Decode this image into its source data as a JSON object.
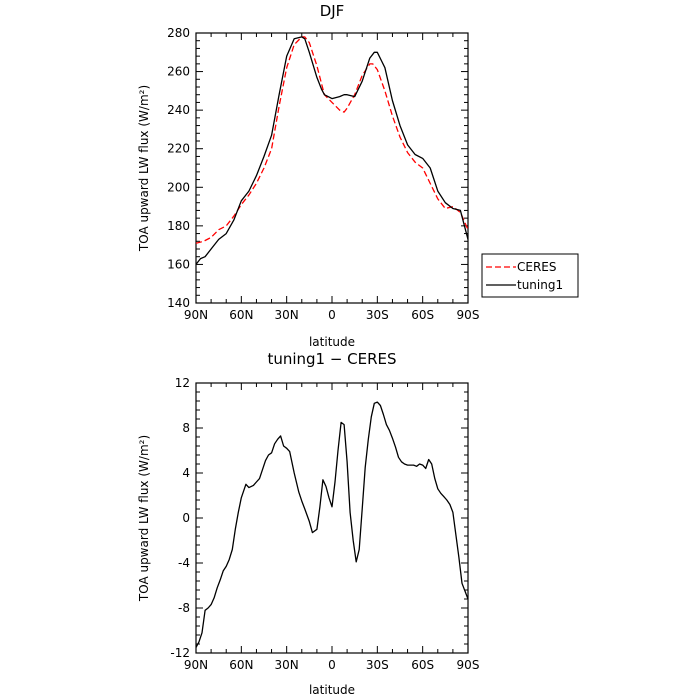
{
  "chart_data": [
    {
      "type": "line",
      "title": "DJF",
      "xlabel": "latitude",
      "ylabel": "TOA upward LW flux (W/m²)",
      "ylim": [
        140,
        280
      ],
      "yticks": [
        140,
        160,
        180,
        200,
        220,
        240,
        260,
        280
      ],
      "xlim": [
        90,
        -90
      ],
      "xticks": [
        90,
        60,
        30,
        0,
        -30,
        -60,
        -90
      ],
      "xticklabels": [
        "90N",
        "60N",
        "30N",
        "0",
        "30S",
        "60S",
        "90S"
      ],
      "legend": "outside-right",
      "series": [
        {
          "name": "CERES",
          "color": "#ff0000",
          "dash": "dashed",
          "x": [
            90,
            85,
            80,
            75,
            70,
            65,
            60,
            55,
            50,
            45,
            40,
            35,
            30,
            25,
            20,
            18,
            15,
            10,
            5,
            0,
            -5,
            -8,
            -10,
            -15,
            -20,
            -25,
            -27,
            -30,
            -35,
            -40,
            -45,
            -50,
            -55,
            -60,
            -65,
            -70,
            -75,
            -80,
            -85,
            -90
          ],
          "y": [
            171,
            172,
            174,
            178,
            180,
            185,
            191,
            196,
            202,
            210,
            220,
            242,
            262,
            274,
            278,
            278,
            275,
            263,
            248,
            244,
            240,
            239,
            241,
            248,
            258,
            264,
            264,
            261,
            250,
            237,
            226,
            218,
            213,
            210,
            202,
            194,
            189,
            190,
            187,
            178
          ]
        },
        {
          "name": "tuning1",
          "color": "#000000",
          "dash": "solid",
          "x": [
            90,
            87,
            84,
            80,
            75,
            70,
            65,
            60,
            55,
            50,
            45,
            40,
            35,
            30,
            25,
            20,
            18,
            15,
            10,
            7,
            5,
            0,
            -5,
            -8,
            -10,
            -15,
            -20,
            -25,
            -28,
            -30,
            -35,
            -40,
            -45,
            -50,
            -55,
            -60,
            -65,
            -70,
            -75,
            -80,
            -85,
            -90
          ],
          "y": [
            160,
            163,
            164,
            168,
            173,
            176,
            183,
            193,
            198,
            206,
            216,
            227,
            248,
            268,
            277,
            278,
            277,
            270,
            257,
            251,
            248,
            246,
            247,
            248,
            248,
            247,
            255,
            267,
            270,
            270,
            262,
            245,
            232,
            222,
            217,
            215,
            210,
            198,
            192,
            189,
            188,
            173
          ]
        }
      ]
    },
    {
      "type": "line",
      "title": "tuning1 − CERES",
      "xlabel": "latitude",
      "ylabel": "TOA upward LW flux (W/m²)",
      "ylim": [
        -12,
        12
      ],
      "yticks": [
        -12,
        -8,
        -4,
        0,
        4,
        8,
        12
      ],
      "xlim": [
        90,
        -90
      ],
      "xticks": [
        90,
        60,
        30,
        0,
        -30,
        -60,
        -90
      ],
      "xticklabels": [
        "90N",
        "60N",
        "30N",
        "0",
        "30S",
        "60S",
        "90S"
      ],
      "series": [
        {
          "color": "#000000",
          "dash": "solid",
          "x": [
            90,
            88,
            86,
            84,
            82,
            80,
            78,
            76,
            74,
            72,
            70,
            68,
            66,
            64,
            62,
            60,
            57,
            55,
            52,
            50,
            48,
            46,
            44,
            42,
            40,
            38,
            36,
            34,
            32,
            30,
            28,
            25,
            22,
            20,
            18,
            15,
            13,
            10,
            8,
            6,
            4,
            2,
            0,
            -2,
            -4,
            -6,
            -8,
            -10,
            -12,
            -14,
            -16,
            -18,
            -20,
            -22,
            -24,
            -26,
            -28,
            -30,
            -32,
            -34,
            -36,
            -38,
            -40,
            -42,
            -44,
            -46,
            -48,
            -50,
            -52,
            -54,
            -56,
            -58,
            -60,
            -62,
            -64,
            -66,
            -68,
            -70,
            -72,
            -74,
            -76,
            -78,
            -80,
            -82,
            -84,
            -86,
            -88,
            -90
          ],
          "y": [
            -11.5,
            -11.0,
            -10.2,
            -8.2,
            -8.0,
            -7.7,
            -7.1,
            -6.2,
            -5.5,
            -4.7,
            -4.3,
            -3.7,
            -2.8,
            -1.0,
            0.5,
            1.8,
            3.0,
            2.7,
            2.9,
            3.2,
            3.5,
            4.3,
            5.1,
            5.6,
            5.8,
            6.6,
            7.0,
            7.3,
            6.4,
            6.2,
            5.9,
            4.0,
            2.3,
            1.5,
            0.8,
            -0.3,
            -1.3,
            -1.0,
            1.0,
            3.4,
            2.8,
            1.8,
            1.0,
            3.2,
            6.0,
            8.5,
            8.3,
            5.0,
            0.5,
            -2.0,
            -3.9,
            -2.8,
            0.8,
            4.5,
            7.0,
            9.0,
            10.2,
            10.3,
            10.0,
            9.2,
            8.3,
            7.8,
            7.1,
            6.3,
            5.4,
            5.0,
            4.8,
            4.7,
            4.7,
            4.7,
            4.6,
            4.8,
            4.7,
            4.4,
            5.2,
            4.8,
            3.5,
            2.6,
            2.2,
            1.9,
            1.6,
            1.2,
            0.5,
            -1.5,
            -3.5,
            -5.8,
            -6.5,
            -7.2
          ]
        }
      ]
    }
  ]
}
